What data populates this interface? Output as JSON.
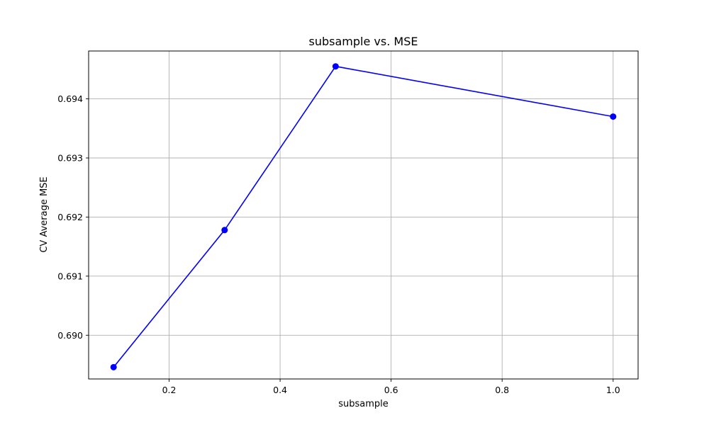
{
  "chart_data": {
    "type": "line",
    "title": "subsample vs. MSE",
    "xlabel": "subsample",
    "ylabel": "CV Average MSE",
    "x": [
      0.1,
      0.3,
      0.5,
      1.0
    ],
    "series": [
      {
        "values": [
          0.68946,
          0.69178,
          0.69455,
          0.6937
        ],
        "color": "#0000ff",
        "marker": "circle"
      }
    ],
    "xlim": [
      0.055,
      1.045
    ],
    "ylim": [
      0.68926,
      0.69481
    ],
    "xticks": [
      0.2,
      0.4,
      0.6,
      0.8,
      1.0
    ],
    "xtick_labels": [
      "0.2",
      "0.4",
      "0.6",
      "0.8",
      "1.0"
    ],
    "yticks": [
      0.69,
      0.691,
      0.692,
      0.693,
      0.694
    ],
    "ytick_labels": [
      "0.690",
      "0.691",
      "0.692",
      "0.693",
      "0.694"
    ],
    "grid": true,
    "grid_color": "#b0b0b0",
    "axis_color": "#000000"
  }
}
